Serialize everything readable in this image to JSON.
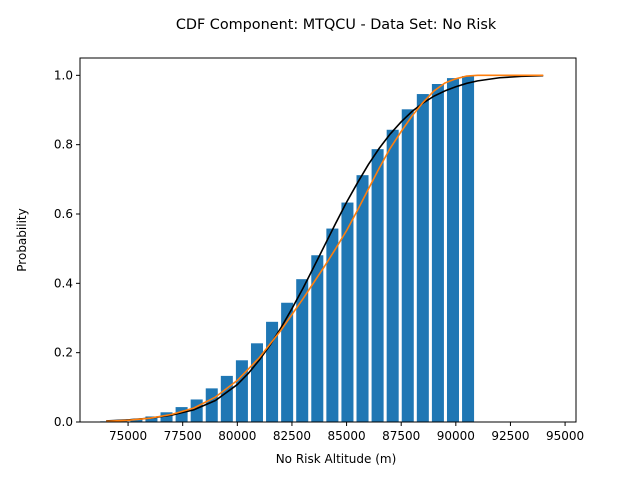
{
  "chart_data": {
    "type": "bar",
    "title": "CDF Component: MTQCU - Data Set: No Risk",
    "xlabel": "No Risk Altitude (m)",
    "ylabel": "Probability",
    "xlim": [
      72800,
      95500
    ],
    "ylim": [
      0,
      1.05
    ],
    "xticks": [
      75000,
      77500,
      80000,
      82500,
      85000,
      87500,
      90000,
      92500,
      95000
    ],
    "xtick_labels": [
      "75000",
      "77500",
      "80000",
      "82500",
      "85000",
      "87500",
      "90000",
      "92500",
      "95000"
    ],
    "yticks": [
      0.0,
      0.2,
      0.4,
      0.6,
      0.8,
      1.0
    ],
    "ytick_labels": [
      "0.0",
      "0.2",
      "0.4",
      "0.6",
      "0.8",
      "1.0"
    ],
    "grid": false,
    "bar_width": 550,
    "bars": {
      "color": "#1f77b4",
      "x": [
        74000,
        74690,
        75380,
        76070,
        76760,
        77450,
        78140,
        78830,
        79520,
        80210,
        80900,
        81590,
        82280,
        82970,
        83660,
        84350,
        85040,
        85730,
        86420,
        87110,
        87800,
        88490,
        89180,
        89870,
        90560
      ],
      "values": [
        0.002,
        0.005,
        0.009,
        0.016,
        0.028,
        0.043,
        0.065,
        0.097,
        0.133,
        0.178,
        0.227,
        0.289,
        0.344,
        0.412,
        0.481,
        0.558,
        0.633,
        0.712,
        0.787,
        0.843,
        0.902,
        0.946,
        0.975,
        0.992,
        0.998
      ]
    },
    "series": [
      {
        "color": "#000000",
        "x": [
          74000,
          75000,
          76000,
          77000,
          78000,
          79000,
          80000,
          80500,
          81000,
          81500,
          82000,
          82500,
          83000,
          83500,
          84000,
          84500,
          85000,
          85500,
          86000,
          86500,
          87000,
          87500,
          88000,
          88500,
          89000,
          89500,
          90000,
          90500,
          91000,
          92000,
          93000,
          94000
        ],
        "y": [
          0.003,
          0.006,
          0.011,
          0.02,
          0.035,
          0.062,
          0.108,
          0.14,
          0.178,
          0.222,
          0.272,
          0.327,
          0.385,
          0.447,
          0.51,
          0.573,
          0.634,
          0.69,
          0.743,
          0.79,
          0.831,
          0.866,
          0.896,
          0.92,
          0.94,
          0.955,
          0.967,
          0.977,
          0.984,
          0.993,
          0.997,
          0.999
        ]
      },
      {
        "color": "#ff7f0e",
        "x": [
          74000,
          75000,
          76000,
          77000,
          78000,
          79000,
          80000,
          81000,
          82000,
          83000,
          84000,
          84500,
          85000,
          85500,
          86000,
          86500,
          87000,
          87500,
          88000,
          88500,
          89000,
          89500,
          90000,
          90500,
          91000,
          91500,
          92000,
          93000,
          94000
        ],
        "y": [
          0.002,
          0.005,
          0.011,
          0.022,
          0.04,
          0.072,
          0.12,
          0.185,
          0.265,
          0.355,
          0.45,
          0.5,
          0.552,
          0.611,
          0.672,
          0.733,
          0.79,
          0.838,
          0.883,
          0.922,
          0.955,
          0.978,
          0.99,
          0.998,
          1.0,
          1.0,
          1.0,
          1.0,
          1.0
        ]
      }
    ]
  }
}
